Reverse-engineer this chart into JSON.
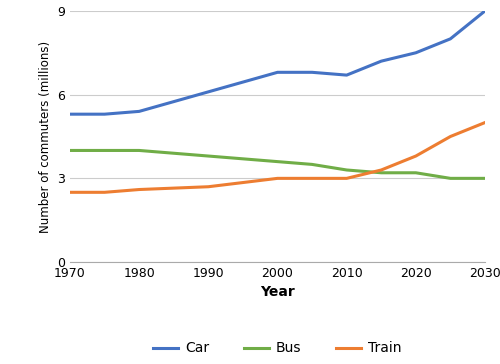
{
  "years": [
    1970,
    1975,
    1980,
    1990,
    2000,
    2005,
    2010,
    2015,
    2020,
    2025,
    2030
  ],
  "car": [
    5.3,
    5.3,
    5.4,
    6.1,
    6.8,
    6.8,
    6.7,
    7.2,
    7.5,
    8.0,
    9.0
  ],
  "bus": [
    4.0,
    4.0,
    4.0,
    3.8,
    3.6,
    3.5,
    3.3,
    3.2,
    3.2,
    3.0,
    3.0
  ],
  "train": [
    2.5,
    2.5,
    2.6,
    2.7,
    3.0,
    3.0,
    3.0,
    3.3,
    3.8,
    4.5,
    5.0
  ],
  "car_color": "#4472C4",
  "bus_color": "#70AD47",
  "train_color": "#ED7D31",
  "xlabel": "Year",
  "ylabel": "Number of commuters (millions)",
  "ylim": [
    0,
    9
  ],
  "yticks": [
    0,
    3,
    6,
    9
  ],
  "xticks": [
    1970,
    1980,
    1990,
    2000,
    2010,
    2020,
    2030
  ],
  "legend_labels": [
    "Car",
    "Bus",
    "Train"
  ],
  "bg_color": "#FFFFFF",
  "grid_color": "#CCCCCC",
  "line_width": 2.2
}
